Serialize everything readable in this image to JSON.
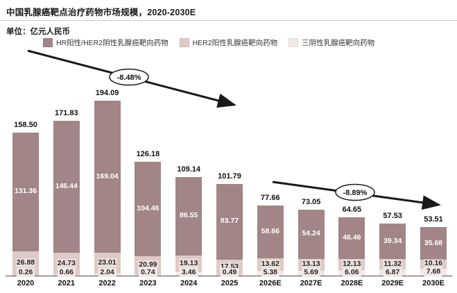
{
  "header": {
    "title": "中国乳腺癌靶点治疗药物市场规模，2020-2030E"
  },
  "unit_label": "单位：亿元人民币",
  "legend": {
    "items": [
      {
        "label": "HR阳性/HER2阴性乳腺癌靶向药物",
        "color": "#A28587"
      },
      {
        "label": "HER2阳性乳腺癌靶向药物",
        "color": "#DECAC6"
      },
      {
        "label": "三阴性乳腺癌靶向药物",
        "color": "#F2E8E5"
      }
    ]
  },
  "chart_data": {
    "type": "bar",
    "stacked": true,
    "ylabel": "亿元人民币",
    "grid": false,
    "legend_position": "top",
    "categories": [
      "2020",
      "2021",
      "2022",
      "2023",
      "2024",
      "2025",
      "2026E",
      "2027E",
      "2028E",
      "2029E",
      "2030E"
    ],
    "series": [
      {
        "name": "HR阳性/HER2阴性乳腺癌靶向药物",
        "color": "#A28587",
        "label_color": "#ffffff",
        "values": [
          "131.36",
          "146.44",
          "169.04",
          "104.46",
          "86.55",
          "83.77",
          "58.66",
          "54.24",
          "46.46",
          "39.34",
          "35.68"
        ]
      },
      {
        "name": "HER2阳性乳腺癌靶向药物",
        "color": "#DECAC6",
        "label_color": "#262626",
        "values": [
          "26.88",
          "24.73",
          "23.01",
          "20.99",
          "19.13",
          "17.53",
          "13.62",
          "13.13",
          "12.13",
          "11.32",
          "10.16"
        ]
      },
      {
        "name": "三阴性乳腺癌靶向药物",
        "color": "#F2E8E5",
        "label_color": "#262626",
        "values": [
          "0.26",
          "0.66",
          "2.04",
          "0.74",
          "3.46",
          "0.49",
          "5.38",
          "5.69",
          "6.06",
          "6.87",
          "7.68"
        ]
      }
    ],
    "totals": [
      "158.50",
      "171.83",
      "194.09",
      "126.18",
      "109.14",
      "101.79",
      "77.66",
      "73.05",
      "64.65",
      "57.53",
      "53.51"
    ],
    "annotations": [
      {
        "label": "-8.48%",
        "from": [
          40,
          73
        ],
        "to": [
          338,
          151
        ],
        "ellipse": [
          186,
          111
        ]
      },
      {
        "label": "-8.89%",
        "from": [
          393,
          262
        ],
        "to": [
          633,
          295
        ],
        "ellipse": [
          512,
          277
        ]
      }
    ]
  }
}
